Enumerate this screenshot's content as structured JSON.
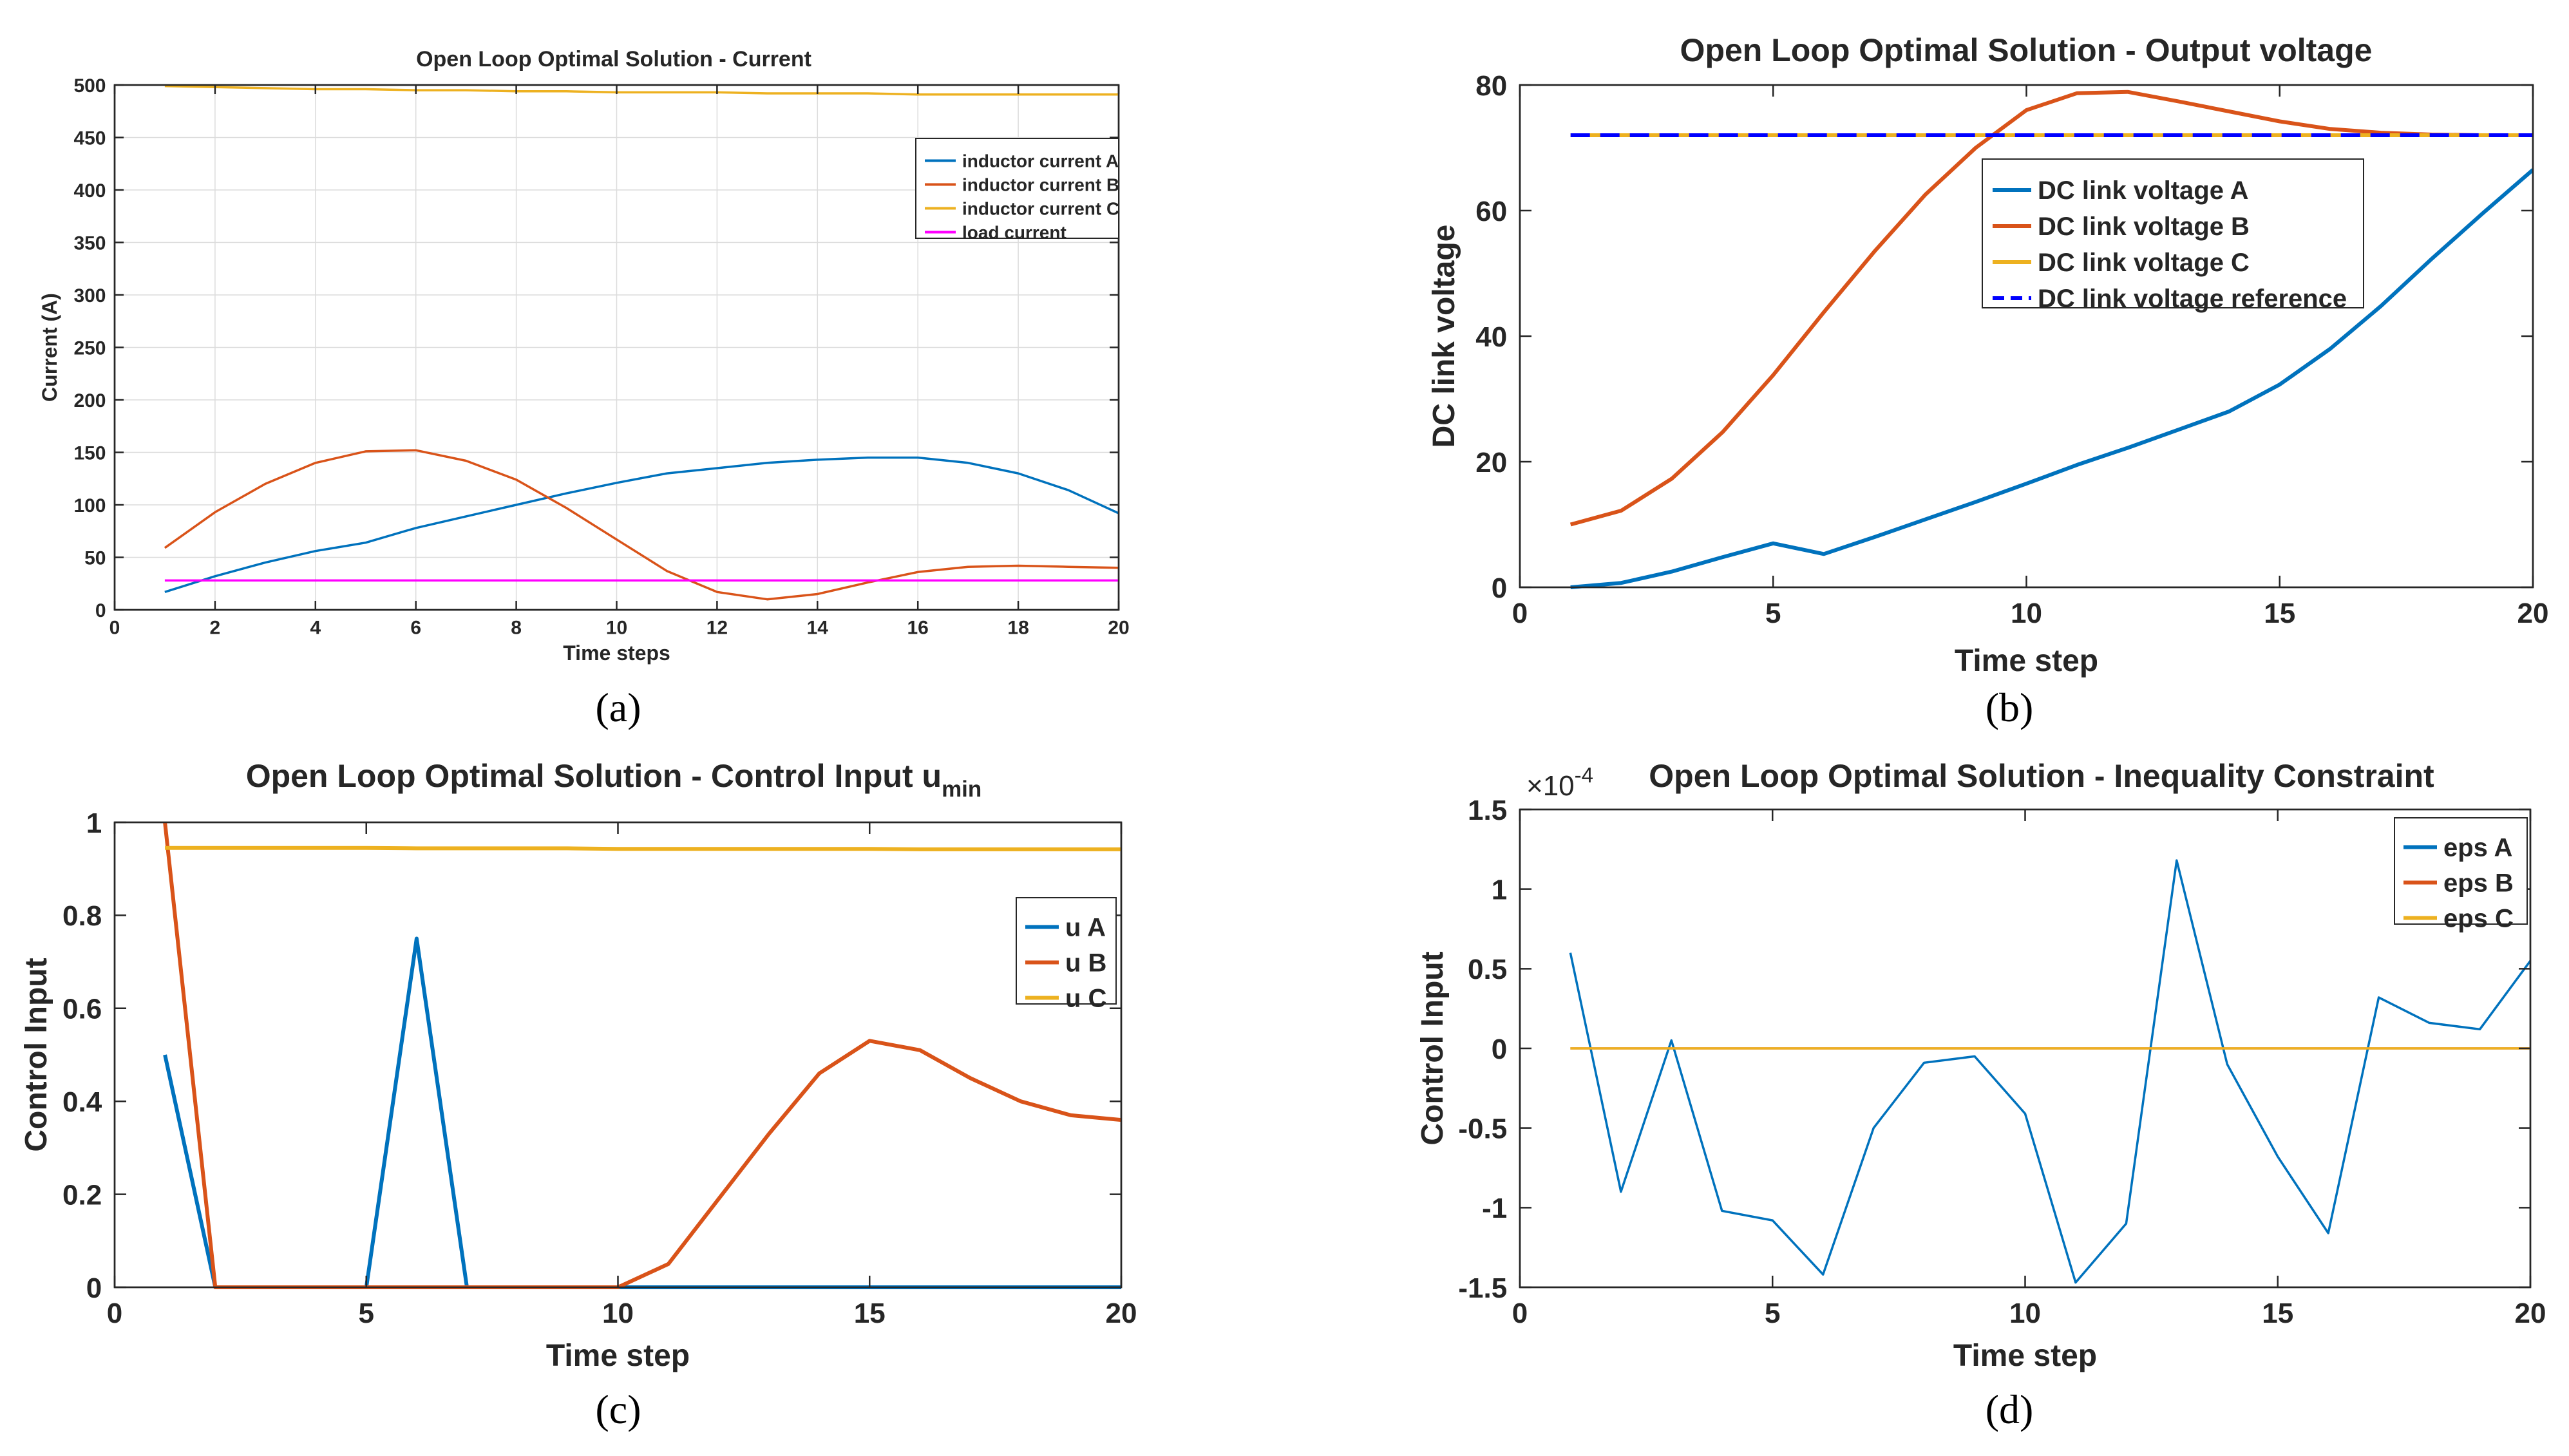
{
  "figure": {
    "panel_labels": [
      "(a)",
      "(b)",
      "(c)",
      "(d)"
    ]
  },
  "chart_data": [
    {
      "type": "line",
      "title": "Open Loop Optimal Solution - Current",
      "title_sub": "",
      "xlabel": "Time steps",
      "ylabel": "Current (A)",
      "xlim": [
        0,
        20
      ],
      "ylim": [
        0,
        500
      ],
      "xticks": [
        0,
        2,
        4,
        6,
        8,
        10,
        12,
        14,
        16,
        18,
        20
      ],
      "yticks": [
        0,
        50,
        100,
        150,
        200,
        250,
        300,
        350,
        400,
        450,
        500
      ],
      "ytick_labels": [
        "0",
        "50",
        "100",
        "150",
        "200",
        "250",
        "300",
        "350",
        "400",
        "450",
        "500"
      ],
      "y_exponent": "",
      "grid": true,
      "legend_position": "top-right",
      "x": [
        1,
        2,
        3,
        4,
        5,
        6,
        7,
        8,
        9,
        10,
        11,
        12,
        13,
        14,
        15,
        16,
        17,
        18,
        19,
        20
      ],
      "series": [
        {
          "name": "inductor current A",
          "color": "#0072BD",
          "dash": "solid",
          "values": [
            17,
            32,
            45,
            56,
            64,
            78,
            89,
            100,
            111,
            121,
            130,
            135,
            140,
            143,
            145,
            145,
            140,
            130,
            114,
            92
          ]
        },
        {
          "name": "inductor current B",
          "color": "#D95319",
          "dash": "solid",
          "values": [
            59,
            93,
            120,
            140,
            151,
            152,
            142,
            124,
            97,
            67,
            37,
            17,
            10,
            15,
            26,
            36,
            41,
            42,
            41,
            40
          ]
        },
        {
          "name": "inductor current C",
          "color": "#EDB120",
          "dash": "solid",
          "values": [
            499,
            498,
            497,
            496,
            496,
            495,
            495,
            494,
            494,
            493,
            493,
            493,
            492,
            492,
            492,
            491,
            491,
            491,
            491,
            491
          ]
        },
        {
          "name": "load current",
          "color": "#FF00FF",
          "dash": "solid",
          "values": [
            28,
            28,
            28,
            28,
            28,
            28,
            28,
            28,
            28,
            28,
            28,
            28,
            28,
            28,
            28,
            28,
            28,
            28,
            28,
            28
          ]
        }
      ]
    },
    {
      "type": "line",
      "title": "Open Loop Optimal Solution - Output voltage",
      "title_sub": "",
      "xlabel": "Time step",
      "ylabel": "DC link voltage",
      "xlim": [
        0,
        20
      ],
      "ylim": [
        0,
        80
      ],
      "xticks": [
        0,
        5,
        10,
        15,
        20
      ],
      "yticks": [
        0,
        20,
        40,
        60,
        80
      ],
      "ytick_labels": [
        "0",
        "20",
        "40",
        "60",
        "80"
      ],
      "y_exponent": "",
      "grid": false,
      "legend_position": "center",
      "x": [
        1,
        2,
        3,
        4,
        5,
        6,
        7,
        8,
        9,
        10,
        11,
        12,
        13,
        14,
        15,
        16,
        17,
        18,
        19,
        20
      ],
      "series": [
        {
          "name": "DC link voltage A",
          "color": "#0072BD",
          "dash": "solid",
          "values": [
            0,
            0.7,
            2.5,
            4.8,
            7,
            5.3,
            8,
            10.8,
            13.6,
            16.5,
            19.5,
            22.2,
            25.1,
            28,
            32.3,
            38,
            44.8,
            52.3,
            59.5,
            66.5
          ]
        },
        {
          "name": "DC link voltage B",
          "color": "#D95319",
          "dash": "solid",
          "values": [
            10,
            12.2,
            17.3,
            24.7,
            33.8,
            43.8,
            53.5,
            62.5,
            70,
            76,
            78.7,
            78.9,
            77.4,
            75.8,
            74.2,
            73,
            72.4,
            72.1,
            72,
            72
          ]
        },
        {
          "name": "DC link voltage C",
          "color": "#EDB120",
          "dash": "solid",
          "values": [
            72,
            72,
            72,
            72,
            72,
            72,
            72,
            72,
            72,
            72,
            72,
            72,
            72,
            72,
            72,
            72,
            72,
            72,
            72,
            72
          ]
        },
        {
          "name": "DC link voltage reference",
          "color": "#0000FF",
          "dash": "dashed",
          "values": [
            72,
            72,
            72,
            72,
            72,
            72,
            72,
            72,
            72,
            72,
            72,
            72,
            72,
            72,
            72,
            72,
            72,
            72,
            72,
            72
          ]
        }
      ]
    },
    {
      "type": "line",
      "title": "Open Loop Optimal Solution - Control Input u",
      "title_sub": "min",
      "xlabel": "Time step",
      "ylabel": "Control Input",
      "xlim": [
        0,
        20
      ],
      "ylim": [
        0,
        1
      ],
      "xticks": [
        0,
        5,
        10,
        15,
        20
      ],
      "yticks": [
        0,
        0.2,
        0.4,
        0.6,
        0.8,
        1
      ],
      "ytick_labels": [
        "0",
        "0.2",
        "0.4",
        "0.6",
        "0.8",
        "1"
      ],
      "y_exponent": "",
      "grid": false,
      "legend_position": "right",
      "x": [
        1,
        2,
        3,
        4,
        5,
        6,
        7,
        8,
        9,
        10,
        11,
        12,
        13,
        14,
        15,
        16,
        17,
        18,
        19,
        20
      ],
      "series": [
        {
          "name": "u A",
          "color": "#0072BD",
          "dash": "solid",
          "values": [
            0.5,
            0,
            0,
            0,
            0,
            0.75,
            0,
            0,
            0,
            0,
            0,
            0,
            0,
            0,
            0,
            0,
            0,
            0,
            0,
            0
          ]
        },
        {
          "name": "u B",
          "color": "#D95319",
          "dash": "solid",
          "values": [
            1,
            0,
            0,
            0,
            0,
            0,
            0,
            0,
            0,
            0,
            0.05,
            0.19,
            0.33,
            0.46,
            0.53,
            0.51,
            0.45,
            0.4,
            0.37,
            0.36
          ]
        },
        {
          "name": "u C",
          "color": "#EDB120",
          "dash": "solid",
          "values": [
            0.945,
            0.945,
            0.945,
            0.945,
            0.945,
            0.944,
            0.944,
            0.944,
            0.944,
            0.943,
            0.943,
            0.943,
            0.943,
            0.943,
            0.943,
            0.942,
            0.942,
            0.942,
            0.942,
            0.942
          ]
        }
      ]
    },
    {
      "type": "line",
      "title": "Open Loop Optimal Solution - Inequality Constraint",
      "title_sub": "",
      "xlabel": "Time step",
      "ylabel": "Control Input",
      "xlim": [
        0,
        20
      ],
      "ylim": [
        -1.5,
        1.5
      ],
      "xticks": [
        0,
        5,
        10,
        15,
        20
      ],
      "yticks": [
        -1.5,
        -1,
        -0.5,
        0,
        0.5,
        1,
        1.5
      ],
      "ytick_labels": [
        "-1.5",
        "-1",
        "-0.5",
        "0",
        "0.5",
        "1",
        "1.5"
      ],
      "y_exponent": "×10^-4",
      "y_exponent_base": "×10",
      "y_exponent_power": "-4",
      "grid": false,
      "legend_position": "top-right",
      "x": [
        1,
        2,
        3,
        4,
        5,
        6,
        7,
        8,
        9,
        10,
        11,
        12,
        13,
        14,
        15,
        16,
        17,
        18,
        19,
        20
      ],
      "series": [
        {
          "name": "eps A",
          "color": "#0072BD",
          "dash": "solid",
          "values": [
            0.6,
            -0.9,
            0.05,
            -1.02,
            -1.08,
            -1.42,
            -0.5,
            -0.09,
            -0.05,
            -0.41,
            -1.47,
            -1.1,
            1.18,
            -0.1,
            -0.68,
            -1.16,
            0.32,
            0.16,
            0.12,
            0.55
          ]
        },
        {
          "name": "eps B",
          "color": "#D95319",
          "dash": "solid",
          "values": [
            0,
            0,
            0,
            0,
            0,
            0,
            0,
            0,
            0,
            0,
            0,
            0,
            0,
            0,
            0,
            0,
            0,
            0,
            0,
            0
          ]
        },
        {
          "name": "eps C",
          "color": "#EDB120",
          "dash": "solid",
          "values": [
            0,
            0,
            0,
            0,
            0,
            0,
            0,
            0,
            0,
            0,
            0,
            0,
            0,
            0,
            0,
            0,
            0,
            0,
            0,
            0
          ]
        }
      ]
    }
  ]
}
